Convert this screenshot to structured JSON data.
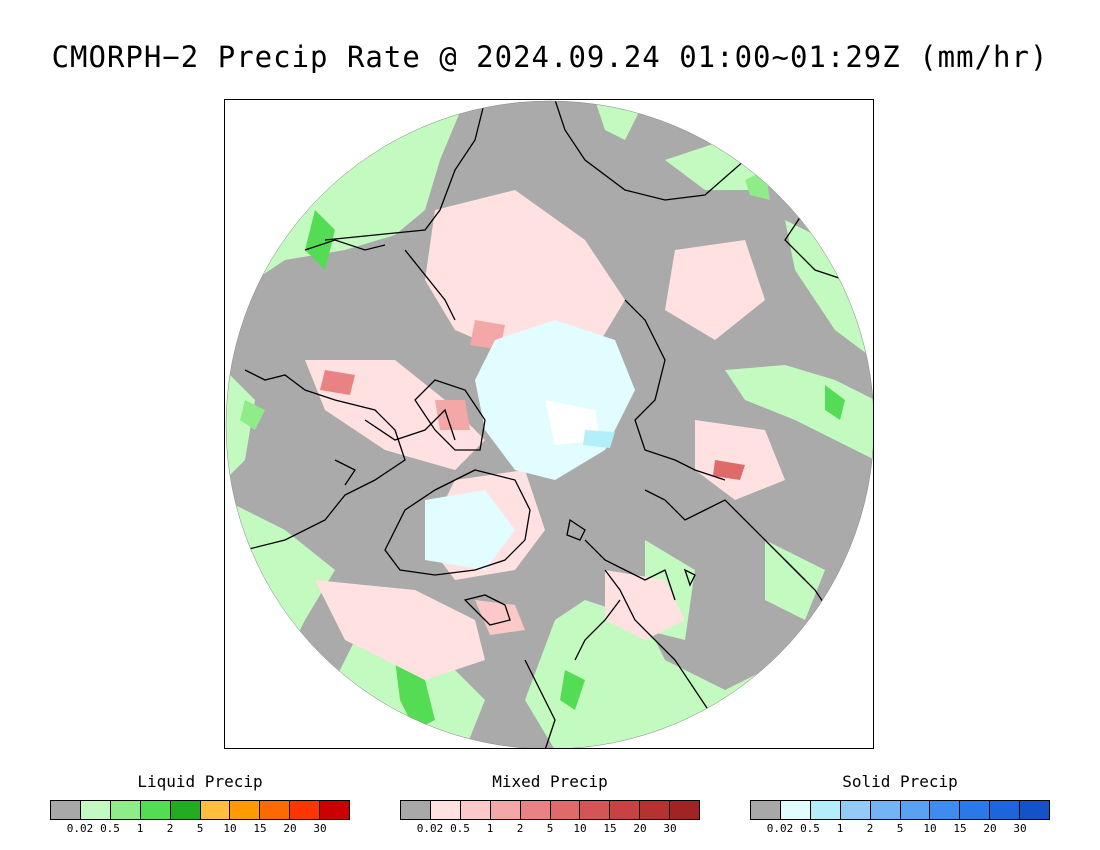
{
  "title": "CMORPH−2 Precip Rate @ 2024.09.24 01:00~01:29Z (mm/hr)",
  "map": {
    "projection": "north-polar-stereographic",
    "background_color": "#aaaaaa",
    "coastline_color": "#000000"
  },
  "legends": [
    {
      "title": "Liquid Precip",
      "colors": [
        "#a8a8a8",
        "#c3fac0",
        "#8fec88",
        "#55dc55",
        "#24ab24",
        "#ffbe3c",
        "#ff9a00",
        "#ff6a00",
        "#ff3500",
        "#cc0000"
      ],
      "ticks": [
        "0.02",
        "0.5",
        "1",
        "2",
        "5",
        "10",
        "15",
        "20",
        "30"
      ]
    },
    {
      "title": "Mixed Precip",
      "colors": [
        "#a8a8a8",
        "#ffe1e1",
        "#fcc8c8",
        "#f4a7a7",
        "#e98383",
        "#df6a6a",
        "#d45555",
        "#c74242",
        "#b53232",
        "#9f2424"
      ],
      "ticks": [
        "0.02",
        "0.5",
        "1",
        "2",
        "5",
        "10",
        "15",
        "20",
        "30"
      ]
    },
    {
      "title": "Solid Precip",
      "colors": [
        "#a8a8a8",
        "#e2fdff",
        "#b3eefb",
        "#92cbf7",
        "#73b4f5",
        "#5aa1f2",
        "#3d8cee",
        "#2b78e9",
        "#1d64dd",
        "#1552c8"
      ],
      "ticks": [
        "0.02",
        "0.5",
        "1",
        "2",
        "5",
        "10",
        "15",
        "20",
        "30"
      ]
    }
  ]
}
